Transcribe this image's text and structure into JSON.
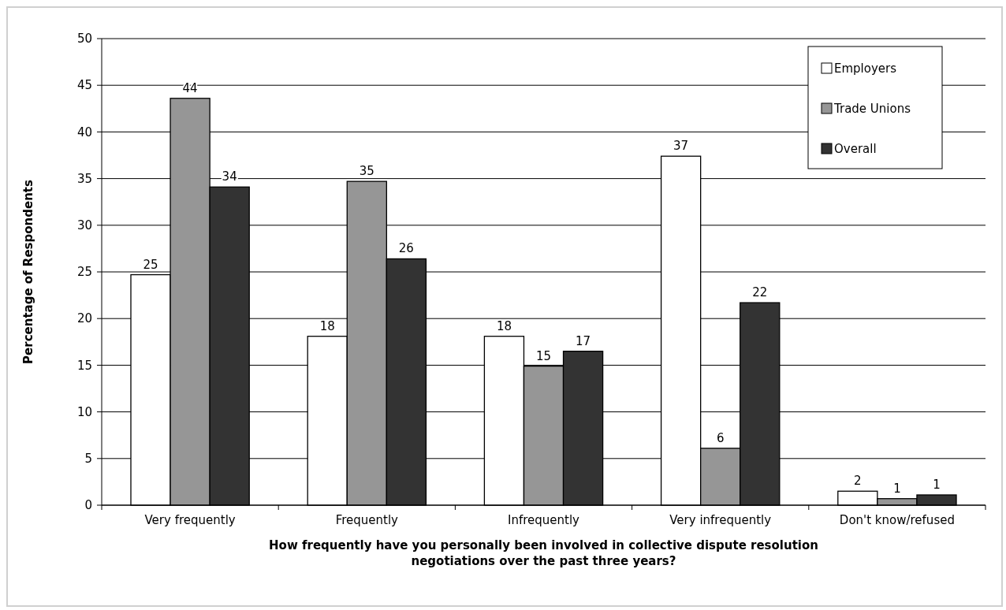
{
  "chart_data": {
    "type": "bar",
    "xlabel": "How frequently have you personally been involved in collective dispute resolution negotiations over the past three years?",
    "ylabel": "Percentage of Respondents",
    "categories": [
      "Very frequently",
      "Frequently",
      "Infrequently",
      "Very infrequently",
      "Don't know/refused"
    ],
    "series": [
      {
        "name": "Employers",
        "color": "#ffffff",
        "values": [
          24.7,
          18.1,
          18.1,
          37.4,
          1.5
        ],
        "value_labels": [
          "25",
          "18",
          "18",
          "37",
          "2"
        ]
      },
      {
        "name": "Trade Unions",
        "color": "#969696",
        "values": [
          43.6,
          34.7,
          14.9,
          6.1,
          0.7
        ],
        "value_labels": [
          "44",
          "35",
          "15",
          "6",
          "1"
        ]
      },
      {
        "name": "Overall",
        "color": "#333333",
        "values": [
          34.1,
          26.4,
          16.5,
          21.7,
          1.1
        ],
        "value_labels": [
          "34",
          "26",
          "17",
          "22",
          "1"
        ]
      }
    ],
    "ylim": [
      0,
      50
    ],
    "yticks": [
      0,
      5,
      10,
      15,
      20,
      25,
      30,
      35,
      40,
      45,
      50
    ],
    "grid": "y",
    "legend": "top right"
  }
}
